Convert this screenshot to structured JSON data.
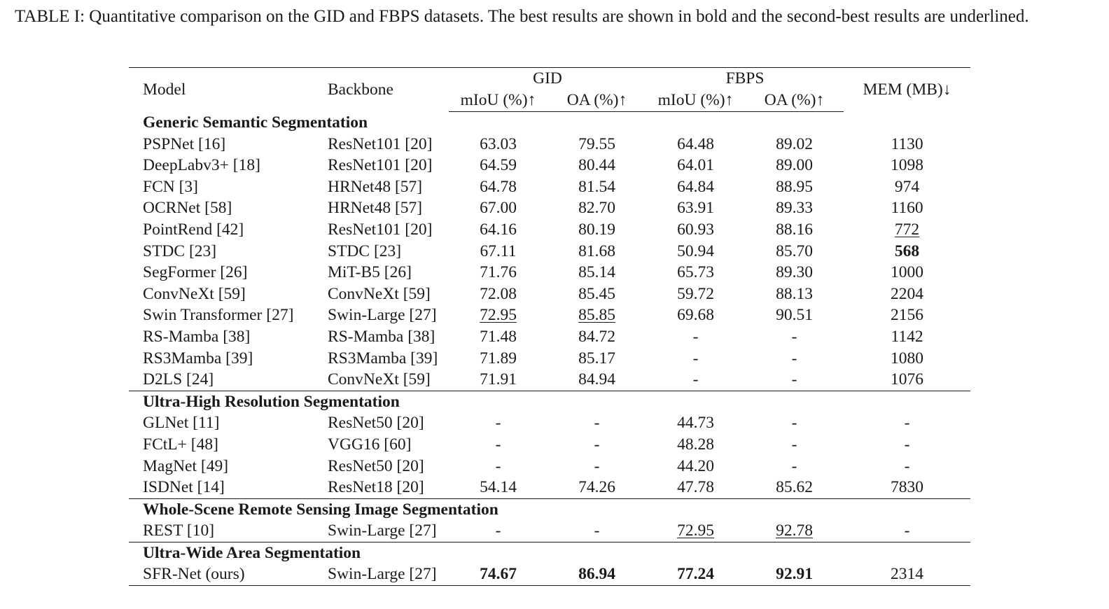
{
  "caption": "TABLE I: Quantitative comparison on the GID and FBPS datasets. The best results are shown in bold and the second-best results are underlined.",
  "header": {
    "model": "Model",
    "backbone": "Backbone",
    "gid": "GID",
    "fbps": "FBPS",
    "gid_miou": "mIoU (%)↑",
    "gid_oa": "OA (%)↑",
    "fbps_miou": "mIoU (%)↑",
    "fbps_oa": "OA (%)↑",
    "mem": "MEM (MB)↓"
  },
  "sections": [
    {
      "title": "Generic Semantic Segmentation",
      "rows": [
        {
          "model": "PSPNet [16]",
          "backbone": "ResNet101 [20]",
          "gid_miou": "63.03",
          "gid_oa": "79.55",
          "fbps_miou": "64.48",
          "fbps_oa": "89.02",
          "mem": "1130"
        },
        {
          "model": "DeepLabv3+ [18]",
          "backbone": "ResNet101 [20]",
          "gid_miou": "64.59",
          "gid_oa": "80.44",
          "fbps_miou": "64.01",
          "fbps_oa": "89.00",
          "mem": "1098"
        },
        {
          "model": "FCN [3]",
          "backbone": "HRNet48 [57]",
          "gid_miou": "64.78",
          "gid_oa": "81.54",
          "fbps_miou": "64.84",
          "fbps_oa": "88.95",
          "mem": "974"
        },
        {
          "model": "OCRNet [58]",
          "backbone": "HRNet48 [57]",
          "gid_miou": "67.00",
          "gid_oa": "82.70",
          "fbps_miou": "63.91",
          "fbps_oa": "89.33",
          "mem": "1160"
        },
        {
          "model": "PointRend [42]",
          "backbone": "ResNet101 [20]",
          "gid_miou": "64.16",
          "gid_oa": "80.19",
          "fbps_miou": "60.93",
          "fbps_oa": "88.16",
          "mem": "772"
        },
        {
          "model": "STDC [23]",
          "backbone": "STDC [23]",
          "gid_miou": "67.11",
          "gid_oa": "81.68",
          "fbps_miou": "50.94",
          "fbps_oa": "85.70",
          "mem": "568"
        },
        {
          "model": "SegFormer [26]",
          "backbone": "MiT-B5 [26]",
          "gid_miou": "71.76",
          "gid_oa": "85.14",
          "fbps_miou": "65.73",
          "fbps_oa": "89.30",
          "mem": "1000"
        },
        {
          "model": "ConvNeXt [59]",
          "backbone": "ConvNeXt [59]",
          "gid_miou": "72.08",
          "gid_oa": "85.45",
          "fbps_miou": "59.72",
          "fbps_oa": "88.13",
          "mem": "2204"
        },
        {
          "model": "Swin Transformer [27]",
          "backbone": "Swin-Large [27]",
          "gid_miou": "72.95",
          "gid_oa": "85.85",
          "fbps_miou": "69.68",
          "fbps_oa": "90.51",
          "mem": "2156"
        },
        {
          "model": "RS-Mamba [38]",
          "backbone": "RS-Mamba [38]",
          "gid_miou": "71.48",
          "gid_oa": "84.72",
          "fbps_miou": "-",
          "fbps_oa": "-",
          "mem": "1142"
        },
        {
          "model": "RS3Mamba [39]",
          "backbone": "RS3Mamba [39]",
          "gid_miou": "71.89",
          "gid_oa": "85.17",
          "fbps_miou": "-",
          "fbps_oa": "-",
          "mem": "1080"
        },
        {
          "model": "D2LS [24]",
          "backbone": "ConvNeXt [59]",
          "gid_miou": "71.91",
          "gid_oa": "84.94",
          "fbps_miou": "-",
          "fbps_oa": "-",
          "mem": "1076"
        }
      ]
    },
    {
      "title": "Ultra-High Resolution Segmentation",
      "rows": [
        {
          "model": "GLNet [11]",
          "backbone": "ResNet50 [20]",
          "gid_miou": "-",
          "gid_oa": "-",
          "fbps_miou": "44.73",
          "fbps_oa": "-",
          "mem": "-"
        },
        {
          "model": "FCtL+ [48]",
          "backbone": "VGG16 [60]",
          "gid_miou": "-",
          "gid_oa": "-",
          "fbps_miou": "48.28",
          "fbps_oa": "-",
          "mem": "-"
        },
        {
          "model": "MagNet [49]",
          "backbone": "ResNet50 [20]",
          "gid_miou": "-",
          "gid_oa": "-",
          "fbps_miou": "44.20",
          "fbps_oa": "-",
          "mem": "-"
        },
        {
          "model": "ISDNet [14]",
          "backbone": "ResNet18 [20]",
          "gid_miou": "54.14",
          "gid_oa": "74.26",
          "fbps_miou": "47.78",
          "fbps_oa": "85.62",
          "mem": "7830"
        }
      ]
    },
    {
      "title": "Whole-Scene Remote Sensing Image Segmentation",
      "rows": [
        {
          "model": "REST [10]",
          "backbone": "Swin-Large [27]",
          "gid_miou": "-",
          "gid_oa": "-",
          "fbps_miou": "72.95",
          "fbps_oa": "92.78",
          "mem": "-"
        }
      ]
    },
    {
      "title": "Ultra-Wide Area Segmentation",
      "rows": [
        {
          "model": "SFR-Net (ours)",
          "backbone": "Swin-Large [27]",
          "gid_miou": "74.67",
          "gid_oa": "86.94",
          "fbps_miou": "77.24",
          "fbps_oa": "92.91",
          "mem": "2314"
        }
      ]
    }
  ],
  "best": {
    "gid_miou": "74.67",
    "gid_oa": "86.94",
    "fbps_miou": "77.24",
    "fbps_oa": "92.91",
    "mem": "568"
  },
  "second_best": {
    "gid_miou": "72.95",
    "gid_oa": "85.85",
    "fbps_miou": "72.95",
    "fbps_oa": "92.78",
    "mem": "772"
  }
}
